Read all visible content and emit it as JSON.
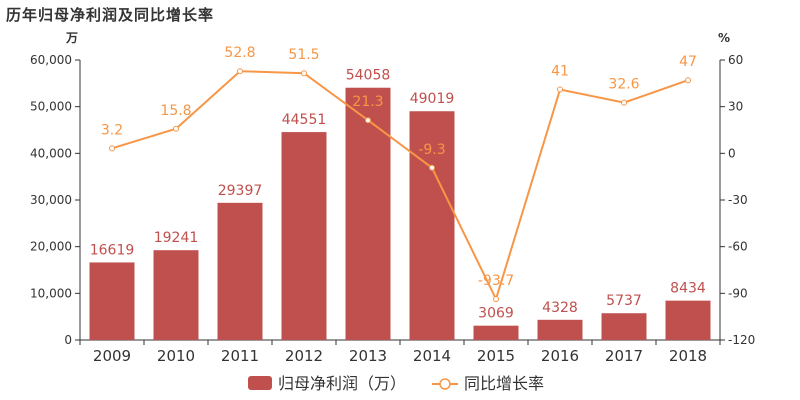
{
  "chart_data": {
    "type": "bar",
    "title": "历年归母净利润及同比增长率",
    "categories": [
      "2009",
      "2010",
      "2011",
      "2012",
      "2013",
      "2014",
      "2015",
      "2016",
      "2017",
      "2018"
    ],
    "series": [
      {
        "name": "归母净利润（万）",
        "type": "bar",
        "axis": "left",
        "color": "#c0504d",
        "values": [
          16619,
          19241,
          29397,
          44551,
          54058,
          49019,
          3069,
          4328,
          5737,
          8434
        ]
      },
      {
        "name": "同比增长率",
        "type": "line",
        "axis": "right",
        "color": "#f79646",
        "values": [
          3.2,
          15.8,
          52.8,
          51.5,
          21.3,
          -9.3,
          -93.7,
          41,
          32.6,
          47
        ]
      }
    ],
    "y_left": {
      "unit": "万",
      "range": [
        0,
        60000
      ],
      "ticks": [
        "0",
        "10,000",
        "20,000",
        "30,000",
        "40,000",
        "50,000",
        "60,000"
      ]
    },
    "y_right": {
      "unit": "%",
      "range": [
        -120,
        60
      ],
      "ticks": [
        "-120",
        "-90",
        "-60",
        "-30",
        "0",
        "30",
        "60"
      ]
    },
    "legend_position": "bottom-center",
    "grid": false
  }
}
